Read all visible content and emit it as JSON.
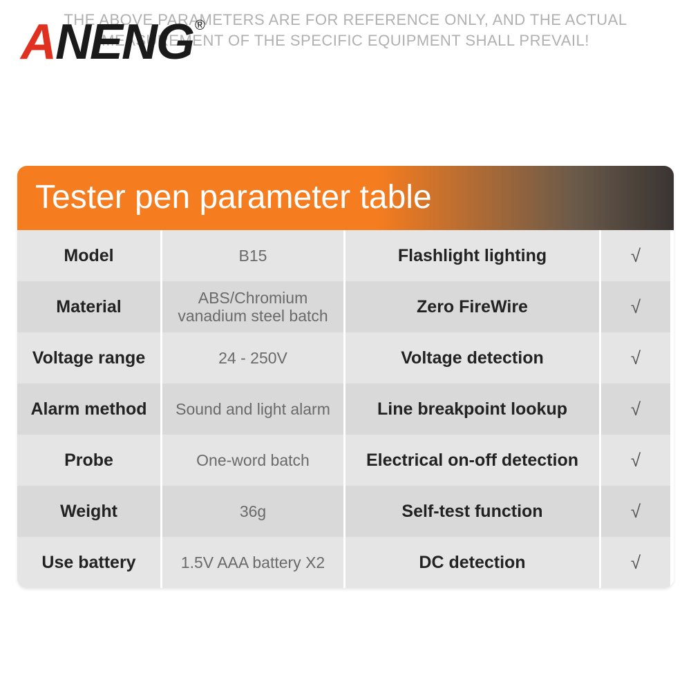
{
  "brand": {
    "name": "ANENG",
    "registered": "®"
  },
  "table": {
    "title": "Tester pen parameter table",
    "header_gradient": {
      "from": "#f57c1f",
      "mid": "#6a5a4a",
      "to": "#3a3432"
    },
    "row_color_a": "#e5e5e5",
    "row_color_b": "#d9d9d9",
    "checkmark": "√",
    "rows": [
      {
        "label": "Model",
        "value": "B15",
        "feature": "Flashlight lighting",
        "check": "√"
      },
      {
        "label": "Material",
        "value": "ABS/Chromium vanadium steel batch",
        "feature": "Zero FireWire",
        "check": "√"
      },
      {
        "label": "Voltage range",
        "value": "24 - 250V",
        "feature": "Voltage detection",
        "check": "√"
      },
      {
        "label": "Alarm method",
        "value": "Sound and light alarm",
        "feature": "Line breakpoint lookup",
        "check": "√"
      },
      {
        "label": "Probe",
        "value": "One-word batch",
        "feature": "Electrical on-off detection",
        "check": "√"
      },
      {
        "label": "Weight",
        "value": "36g",
        "feature": "Self-test function",
        "check": "√"
      },
      {
        "label": "Use battery",
        "value": "1.5V AAA battery X2",
        "feature": "DC detection",
        "check": "√"
      }
    ]
  },
  "footer": "THE ABOVE PARAMETERS ARE FOR REFERENCE ONLY, AND THE ACTUAL MEASUREMENT OF THE SPECIFIC EQUIPMENT SHALL PREVAIL!"
}
